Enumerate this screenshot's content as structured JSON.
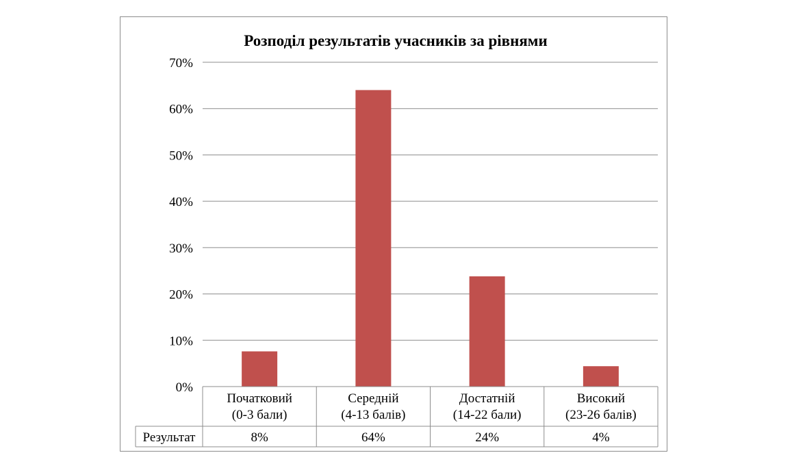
{
  "chart_data": {
    "type": "bar",
    "title": "Розподіл результатів учасників за рівнями",
    "categories": [
      [
        "Початковий",
        "(0-3 бали)"
      ],
      [
        "Середній",
        "(4-13 балів)"
      ],
      [
        "Достатній",
        "(14-22 бали)"
      ],
      [
        "Високий",
        "(23-26 балів)"
      ]
    ],
    "series": [
      {
        "name": "Результат",
        "values": [
          7.6,
          64.0,
          23.8,
          4.4
        ],
        "labels": [
          "8%",
          "64%",
          "24%",
          "4%"
        ],
        "color": "#c0504d"
      }
    ],
    "y_ticks": [
      "0%",
      "10%",
      "20%",
      "30%",
      "40%",
      "50%",
      "60%",
      "70%"
    ],
    "ylim": [
      0,
      70
    ],
    "grid": true,
    "legend": "data-table"
  }
}
